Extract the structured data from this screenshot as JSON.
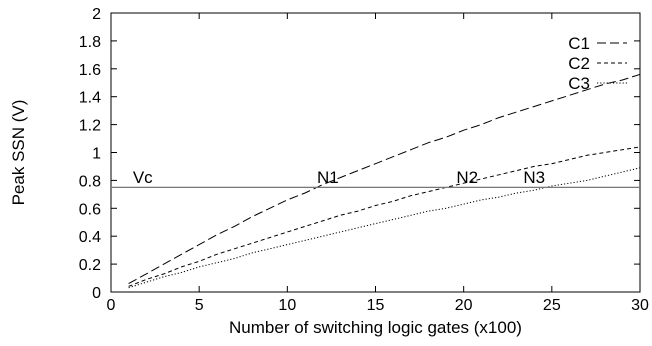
{
  "chart_data": {
    "type": "line",
    "title": "",
    "xlabel": "Number of switching logic gates (x100)",
    "ylabel": "Peak SSN (V)",
    "xlim": [
      0,
      30
    ],
    "ylim": [
      0,
      2
    ],
    "xticks": [
      0,
      5,
      10,
      15,
      20,
      25,
      30
    ],
    "xtick_labels": [
      "0",
      "5",
      "10",
      "15",
      "20",
      "25",
      "30"
    ],
    "yticks": [
      0,
      0.2,
      0.4,
      0.6,
      0.8,
      1,
      1.2,
      1.4,
      1.6,
      1.8,
      2
    ],
    "ytick_labels": [
      "0",
      "0.2",
      "0.4",
      "0.6",
      "0.8",
      "1",
      "1.2",
      "1.4",
      "1.6",
      "1.8",
      "2"
    ],
    "grid": false,
    "legend_position": "top-right",
    "series": [
      {
        "name": "C1",
        "style": "long-dash",
        "x": [
          1,
          2,
          3,
          4,
          5,
          6,
          7,
          8,
          9,
          10,
          11,
          12,
          13,
          14,
          15,
          16,
          17,
          18,
          19,
          20,
          21,
          22,
          23,
          24,
          25,
          26,
          27,
          28,
          29,
          30
        ],
        "y": [
          0.06,
          0.13,
          0.2,
          0.27,
          0.34,
          0.41,
          0.47,
          0.54,
          0.6,
          0.66,
          0.71,
          0.77,
          0.82,
          0.87,
          0.92,
          0.97,
          1.02,
          1.07,
          1.11,
          1.16,
          1.2,
          1.25,
          1.29,
          1.33,
          1.37,
          1.41,
          1.45,
          1.49,
          1.52,
          1.56
        ]
      },
      {
        "name": "C2",
        "style": "short-dash",
        "x": [
          1,
          2,
          3,
          4,
          5,
          6,
          7,
          8,
          9,
          10,
          11,
          12,
          13,
          14,
          15,
          16,
          17,
          18,
          19,
          20,
          21,
          22,
          23,
          24,
          25,
          26,
          27,
          28,
          29,
          30
        ],
        "y": [
          0.04,
          0.09,
          0.13,
          0.18,
          0.22,
          0.27,
          0.31,
          0.35,
          0.39,
          0.43,
          0.47,
          0.51,
          0.55,
          0.58,
          0.62,
          0.65,
          0.69,
          0.72,
          0.75,
          0.78,
          0.81,
          0.84,
          0.87,
          0.9,
          0.92,
          0.95,
          0.98,
          1.0,
          1.02,
          1.04
        ]
      },
      {
        "name": "C3",
        "style": "dotted",
        "x": [
          1,
          2,
          3,
          4,
          5,
          6,
          7,
          8,
          9,
          10,
          11,
          12,
          13,
          14,
          15,
          16,
          17,
          18,
          19,
          20,
          21,
          22,
          23,
          24,
          25,
          26,
          27,
          28,
          29,
          30
        ],
        "y": [
          0.03,
          0.07,
          0.11,
          0.14,
          0.18,
          0.21,
          0.24,
          0.28,
          0.31,
          0.34,
          0.37,
          0.4,
          0.43,
          0.46,
          0.49,
          0.52,
          0.55,
          0.58,
          0.6,
          0.63,
          0.66,
          0.68,
          0.71,
          0.73,
          0.76,
          0.78,
          0.8,
          0.83,
          0.86,
          0.89
        ]
      }
    ],
    "reference_line": {
      "label": "Vc",
      "y": 0.75
    },
    "annotations": [
      {
        "text": "Vc",
        "x": 1.8,
        "y": 0.78
      },
      {
        "text": "N1",
        "x": 12.3,
        "y": 0.78
      },
      {
        "text": "N2",
        "x": 20.2,
        "y": 0.78
      },
      {
        "text": "N3",
        "x": 24.0,
        "y": 0.78
      }
    ]
  }
}
